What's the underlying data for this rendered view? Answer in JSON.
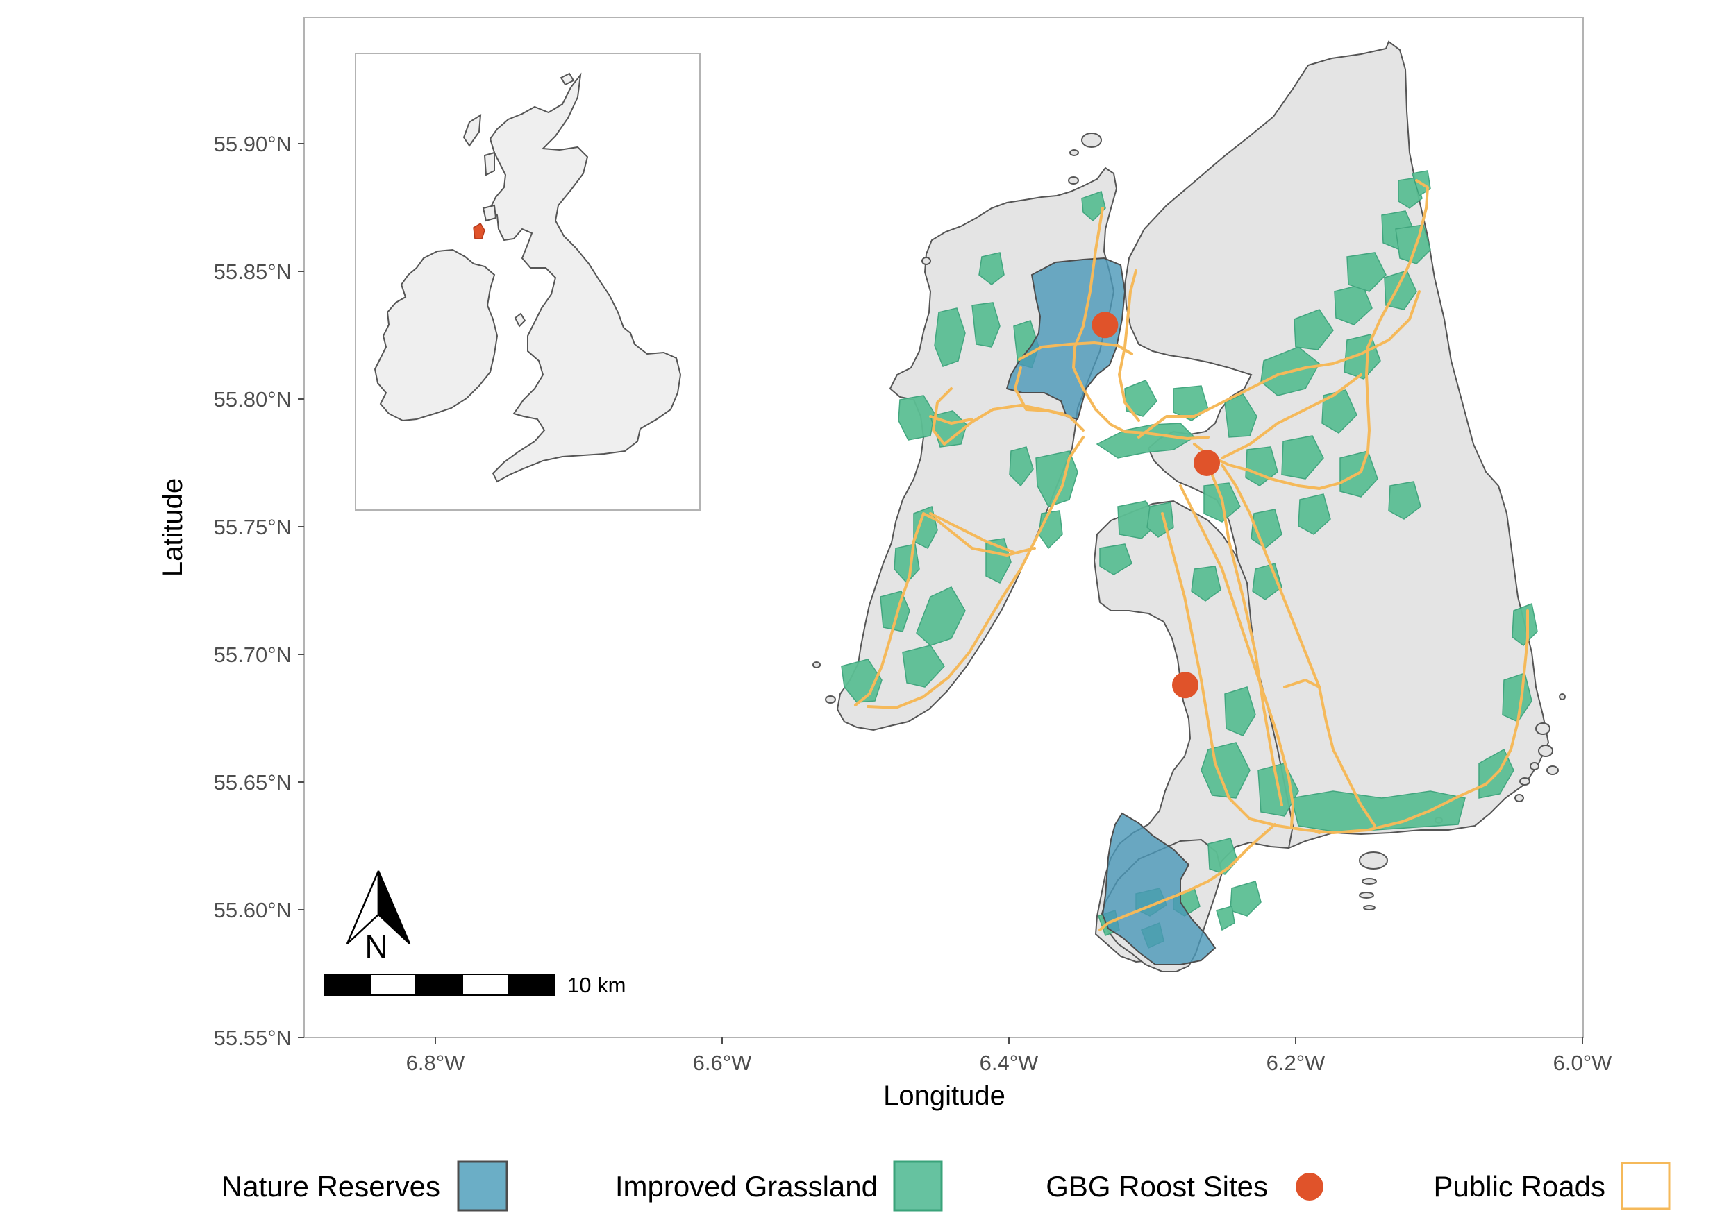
{
  "map": {
    "x_axis_title": "Longitude",
    "y_axis_title": "Latitude",
    "x_ticks": [
      "6.8°W",
      "6.6°W",
      "6.4°W",
      "6.2°W",
      "6.0°W"
    ],
    "y_ticks": [
      "55.90°N",
      "55.85°N",
      "55.80°N",
      "55.75°N",
      "55.70°N",
      "55.65°N",
      "55.60°N",
      "55.55°N"
    ],
    "scale_bar_label": "10 km",
    "north_arrow_label": "N",
    "roost_sites_lon_lat": [
      [
        -6.333,
        55.829
      ],
      [
        -6.262,
        55.775
      ],
      [
        -6.277,
        55.688
      ]
    ]
  },
  "legend": {
    "items": [
      {
        "label": "Nature Reserves",
        "fill": "#6BAEC6",
        "stroke": "#4d4d4d"
      },
      {
        "label": "Improved Grassland",
        "fill": "#66C2A0",
        "stroke": "#3aa37a"
      },
      {
        "label": "GBG Roost Sites",
        "fill": "#E0532A"
      },
      {
        "label": "Public Roads",
        "stroke": "#F5B95A"
      }
    ]
  },
  "colors": {
    "land": "#e4e4e4",
    "land_outline": "#555555",
    "inset_land": "#efefef",
    "reserve": "#4a97b8",
    "grassland": "#5cbf94",
    "road": "#F5B95A",
    "roost": "#E0532A",
    "panel_border": "#b3b3b3"
  }
}
